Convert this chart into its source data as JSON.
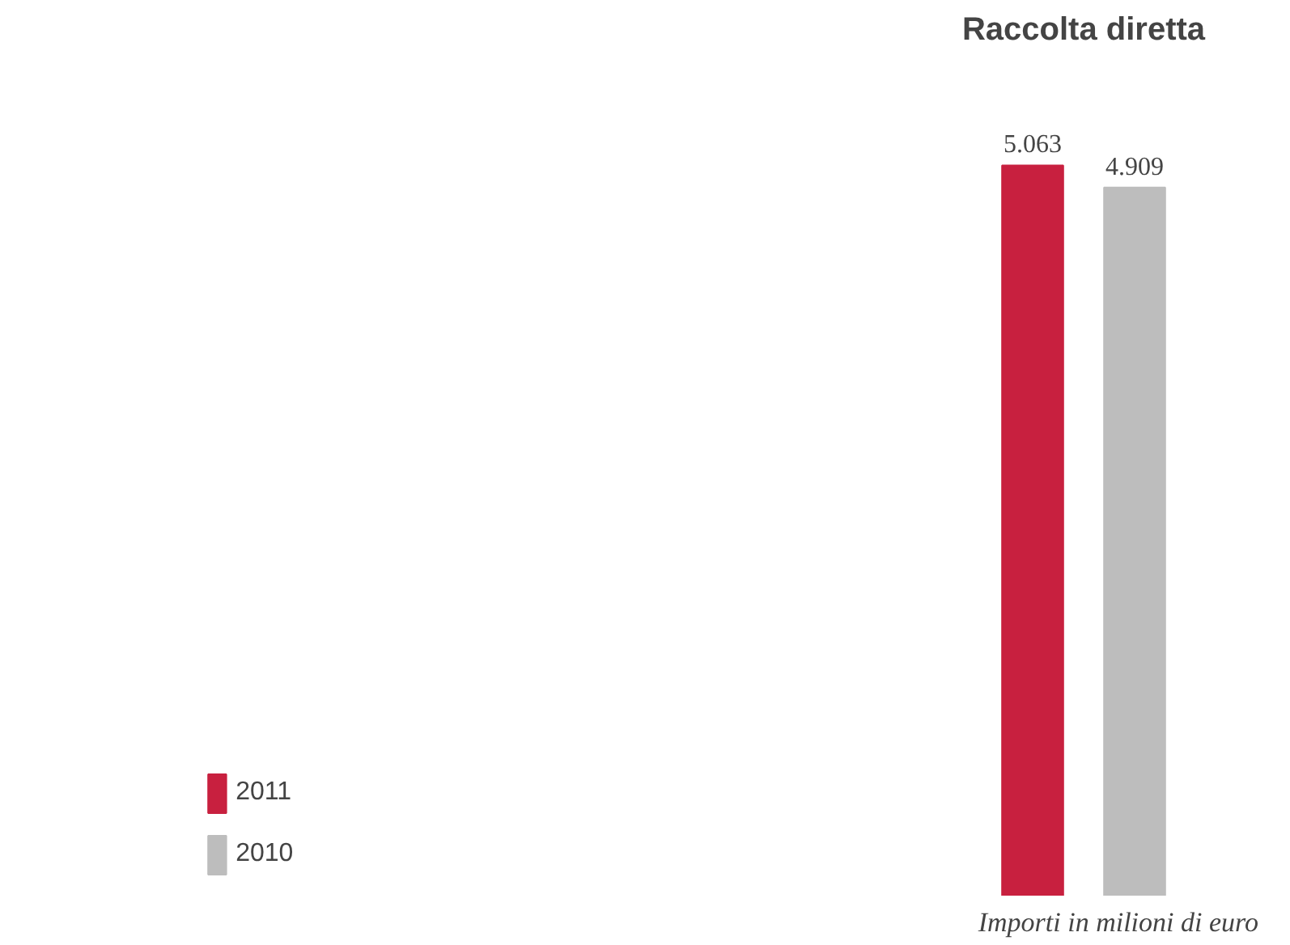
{
  "chart_data": {
    "type": "bar",
    "title": "Raccolta diretta",
    "categories": [
      null
    ],
    "series": [
      {
        "name": "2011",
        "color": "#c8203f",
        "values": [
          5063
        ],
        "value_labels": [
          "5.063"
        ]
      },
      {
        "name": "2010",
        "color": "#bdbdbd",
        "values": [
          4909
        ],
        "value_labels": [
          "4.909"
        ]
      }
    ],
    "legend": "bottom left",
    "grid": false,
    "annotations": [
      "Importi in milioni di euro"
    ]
  }
}
